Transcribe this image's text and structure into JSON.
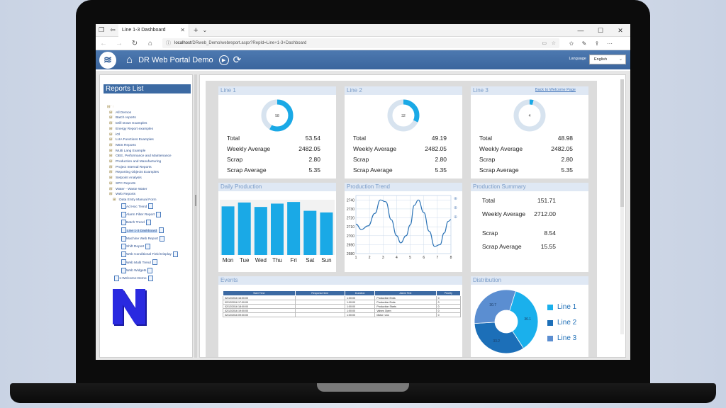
{
  "browser": {
    "tab_title": "Line 1-3 Dashboard",
    "url_host": "localhost",
    "url_path": "/DRweb_Demo/webreport.aspx?RepId=Line+1-3+Dashboard"
  },
  "header": {
    "title": "DR Web Portal Demo",
    "language_label": "Language",
    "language_value": "English"
  },
  "sidebar": {
    "title": "Reports List",
    "tree": [
      "All Demos",
      "Batch reports",
      "Drill Down Examples",
      "Energy Report examples",
      "iOl",
      "LUA Functions Examples",
      "MES Reports",
      "Multi Lang Example",
      "OEE, Performance and Maintenance",
      "Production and Manufacturing",
      "Project Internal Reports",
      "Reporting Objects Examples",
      "Setpoint Analysis",
      "SPC Reports",
      "Water - Waste Water",
      "Web Reports",
      "Data Entry Manual Form"
    ],
    "reports": [
      "Ad Hoc Trend",
      "Alarm Filter Report",
      "Batch Trend",
      "Line 1-3 Dashboard",
      "Machine Web Report",
      "Shift Report",
      "Web Conditional Field Display",
      "Web Multi Trend",
      "Web Widgets"
    ],
    "welcome": "1-Welcome-Demo"
  },
  "line1": {
    "title": "Line 1",
    "donut_value": "58",
    "donut_fraction": 0.58,
    "total_label": "Total",
    "total": "53.54",
    "weekly_label": "Weekly Average",
    "weekly": "2482.05",
    "scrap_label": "Scrap",
    "scrap": "2.80",
    "scrap_avg_label": "Scrap Average",
    "scrap_avg": "5.35"
  },
  "line2": {
    "title": "Line 2",
    "donut_value": "32",
    "donut_fraction": 0.32,
    "total_label": "Total",
    "total": "49.19",
    "weekly_label": "Weekly Average",
    "weekly": "2482.05",
    "scrap_label": "Scrap",
    "scrap": "2.80",
    "scrap_avg_label": "Scrap Average",
    "scrap_avg": "5.35"
  },
  "line3": {
    "title": "Line 3",
    "donut_value": "4",
    "donut_fraction": 0.04,
    "back_link": "Back to Welcome Page",
    "total_label": "Total",
    "total": "48.98",
    "weekly_label": "Weekly Average",
    "weekly": "2482.05",
    "scrap_label": "Scrap",
    "scrap": "2.80",
    "scrap_avg_label": "Scrap Average",
    "scrap_avg": "5.35"
  },
  "daily_production": {
    "title": "Daily Production",
    "chart_data": {
      "type": "bar",
      "categories": [
        "Mon",
        "Tue",
        "Wed",
        "Thu",
        "Fri",
        "Sat",
        "Sun"
      ],
      "values": [
        88,
        95,
        87,
        93,
        96,
        80,
        77
      ],
      "ylim": [
        0,
        100
      ]
    }
  },
  "production_trend": {
    "title": "Production Trend",
    "chart_data": {
      "type": "line",
      "x": [
        1,
        2,
        3,
        4,
        5,
        6,
        7,
        8
      ],
      "xticks": [
        "1",
        "2",
        "3",
        "4",
        "5",
        "6",
        "7",
        "8"
      ],
      "yticks": [
        "2680",
        "2690",
        "2700",
        "2710",
        "2720",
        "2730",
        "2740"
      ],
      "ylim": [
        2680,
        2745
      ],
      "points": [
        [
          1.0,
          2713
        ],
        [
          1.4,
          2707
        ],
        [
          1.9,
          2711
        ],
        [
          2.4,
          2725
        ],
        [
          2.8,
          2740
        ],
        [
          3.2,
          2738
        ],
        [
          3.6,
          2718
        ],
        [
          4.0,
          2700
        ],
        [
          4.3,
          2692
        ],
        [
          4.7,
          2700
        ],
        [
          5.0,
          2712
        ],
        [
          5.3,
          2734
        ],
        [
          5.6,
          2740
        ],
        [
          6.0,
          2726
        ],
        [
          6.4,
          2705
        ],
        [
          6.8,
          2688
        ],
        [
          7.2,
          2690
        ],
        [
          7.5,
          2703
        ],
        [
          7.8,
          2716
        ],
        [
          8.0,
          2718
        ]
      ]
    }
  },
  "production_summary": {
    "title": "Production Summary",
    "total_label": "Total",
    "total": "151.71",
    "weekly_label": "Weekly Average",
    "weekly": "2712.00",
    "scrap_label": "Scrap",
    "scrap": "8.54",
    "scrap_avg_label": "Scrap Average",
    "scrap_avg": "15.55"
  },
  "events": {
    "title": "Events",
    "columns": [
      "Start Time",
      "Response time",
      "Duration",
      "Alarm Text",
      "Priority"
    ],
    "rows": [
      [
        "02/12/2016 16:00:00",
        "",
        "1:00:00",
        "Production Ends",
        "0"
      ],
      [
        "02/12/2016 17:00:00",
        "",
        "1:00:00",
        "Production Ends",
        "0"
      ],
      [
        "02/12/2016 18:00:00",
        "",
        "1:00:00",
        "Production Starts",
        "0"
      ],
      [
        "02/12/2016 19:00:00",
        "",
        "1:00:00",
        "Valves Open",
        "0"
      ],
      [
        "02/12/2016 09:00:00",
        "",
        "1:00:00",
        "Motor runs",
        "0"
      ]
    ]
  },
  "distribution": {
    "title": "Distribution",
    "chart_data": {
      "type": "pie",
      "labels": [
        "Line 1",
        "Line 2",
        "Line 3"
      ],
      "values": [
        36.1,
        33.2,
        30.7
      ],
      "slice_labels": [
        "36.1",
        "33.2",
        "30.7"
      ],
      "colors": [
        "#1ab0ec",
        "#1c6fb8",
        "#5b8ed1"
      ]
    }
  },
  "colors": {
    "accent": "#3c6aa3",
    "bar": "#1aa9e6",
    "donut": "#1aa9e6"
  }
}
